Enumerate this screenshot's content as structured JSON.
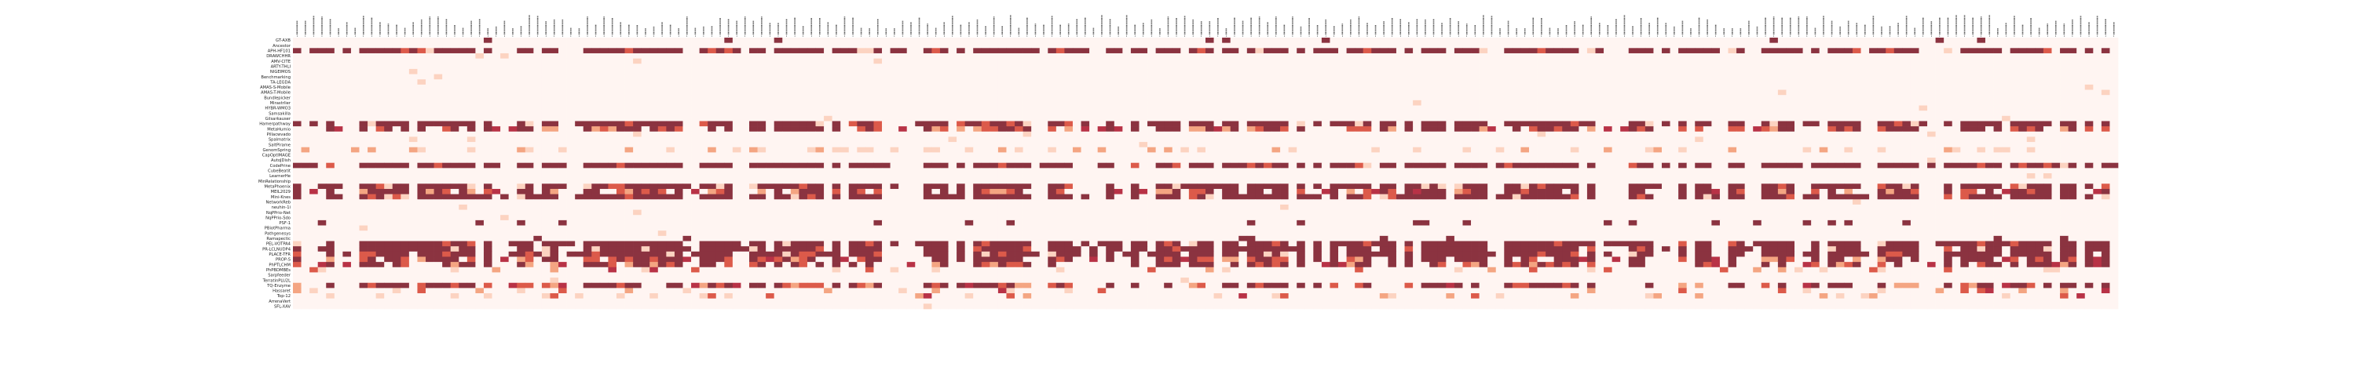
{
  "chart_data": {
    "type": "heatmap",
    "title": "",
    "xlabel": "",
    "ylabel": "",
    "column_labels_legible": false,
    "n_columns": 220,
    "rows": [
      "GT-AXB",
      "Ancestor",
      "APH-HF101",
      "DRAWCHHR",
      "AMV-CITE",
      "ARTY-THLI",
      "NIGEIMOS",
      "Benchmarking",
      "TA-LEGDA",
      "AMAS-S-Mobile",
      "AMAS-T-Mobile",
      "Bundlepicker",
      "Mirastrlier",
      "HYBR-WMO3",
      "Samsakilla",
      "Gilsarkauser",
      "Hamerpathway",
      "MetaHumio",
      "Pillacwvado",
      "Spalmatrix",
      "SaltPlrame",
      "GenomSpring",
      "CapOptIMAGE",
      "AutoJDish",
      "CodePrine",
      "CubeBeatit",
      "LearnerHe",
      "MinRelationship",
      "MetaPhoenix",
      "MEIL2029",
      "Mini-Knes",
      "NetworkReb",
      "neuhin-1i",
      "NqPPrio-Net",
      "NqPPrio-Sdo",
      "PSF-1",
      "PBiotPharma",
      "Pathgenesys",
      "Ramapectic",
      "PEL-VOTPA4",
      "PR-LCLNUDP4",
      "PLACE-TFR",
      "PROP-S",
      "PhPTLCHM",
      "PhPBDMBEs",
      "Sarpfeeder",
      "TerratinPLU2L",
      "TQ-Enzyme",
      "Hassaret",
      "Top-12",
      "ArrenaVert",
      "SFL-XAV"
    ],
    "row_patterns": {
      "0": "sparse-dark-markers",
      "2": "dense-dark",
      "16": "dense-dark",
      "17": "mixed",
      "21": "light-speckled",
      "24": "dense-dark",
      "28": "dense-dark",
      "29": "mixed",
      "30": "dense-dark",
      "35": "sparse-dark",
      "38": "sparse-dark",
      "39": "dense-dark",
      "40": "dense-dark",
      "41": "dense-dark",
      "42": "mixed",
      "43": "mixed",
      "44": "sparse-medium",
      "47": "mixed",
      "48": "sparse-medium",
      "49": "sparse-medium"
    },
    "value_range": [
      0,
      1
    ],
    "colorscale": [
      "#fff5f2",
      "#fcd3c1",
      "#f4a582",
      "#dc5a4a",
      "#b83246",
      "#8b3340"
    ],
    "background_color": "#ffffff",
    "grid": false,
    "legend": "none"
  }
}
